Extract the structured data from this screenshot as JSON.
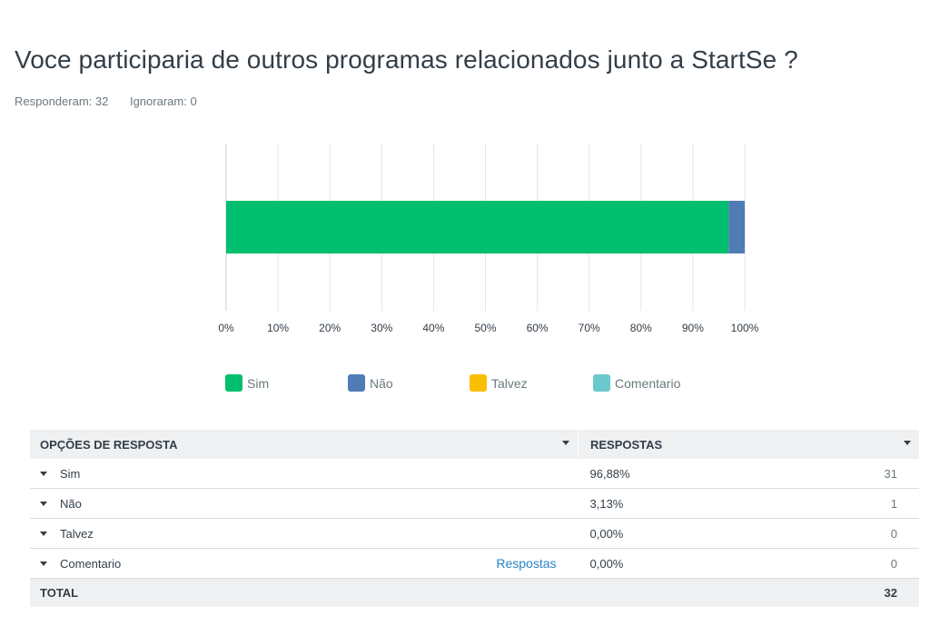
{
  "title": "Voce participaria de outros programas relacionados junto a StartSe ?",
  "stats": {
    "answered": "Responderam: 32",
    "skipped": "Ignoraram: 0"
  },
  "chart_data": {
    "type": "bar",
    "orientation": "horizontal",
    "stacked": true,
    "categories": [
      ""
    ],
    "series": [
      {
        "name": "Sim",
        "color": "#00bf6f",
        "values": [
          96.88
        ]
      },
      {
        "name": "Não",
        "color": "#507cb6",
        "values": [
          3.13
        ]
      },
      {
        "name": "Talvez",
        "color": "#f9be00",
        "values": [
          0
        ]
      },
      {
        "name": "Comentario",
        "color": "#6bc8cd",
        "values": [
          0
        ]
      }
    ],
    "xlim": [
      0,
      100
    ],
    "xticks": [
      "0%",
      "10%",
      "20%",
      "30%",
      "40%",
      "50%",
      "60%",
      "70%",
      "80%",
      "90%",
      "100%"
    ],
    "grid": true,
    "legend_position": "bottom"
  },
  "table": {
    "headers": {
      "options": "OPÇÕES DE RESPOSTA",
      "responses": "RESPOSTAS"
    },
    "rows": [
      {
        "label": "Sim",
        "percent": "96,88%",
        "count": "31",
        "link": ""
      },
      {
        "label": "Não",
        "percent": "3,13%",
        "count": "1",
        "link": ""
      },
      {
        "label": "Talvez",
        "percent": "0,00%",
        "count": "0",
        "link": ""
      },
      {
        "label": "Comentario",
        "percent": "0,00%",
        "count": "0",
        "link": "Respostas"
      }
    ],
    "total": {
      "label": "TOTAL",
      "count": "32"
    }
  }
}
